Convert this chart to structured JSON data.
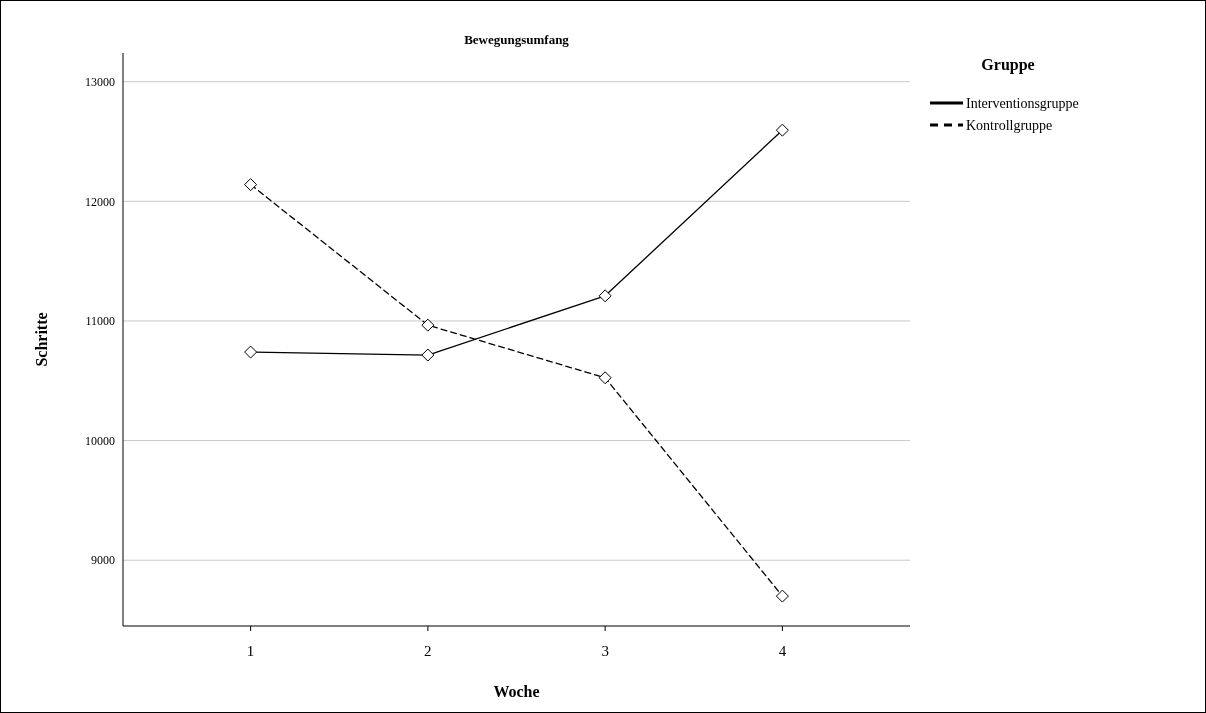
{
  "chart_data": {
    "type": "line",
    "title": "Bewegungsumfang",
    "xlabel": "Woche",
    "ylabel": "Schritte",
    "legend_title": "Gruppe",
    "x": [
      1,
      2,
      3,
      4
    ],
    "xlim": [
      0.28,
      4.72
    ],
    "xticks": [
      1,
      2,
      3,
      4
    ],
    "ylim": [
      8450,
      13240
    ],
    "yticks": [
      9000,
      10000,
      11000,
      12000,
      13000
    ],
    "grid": "y",
    "legend": "top right",
    "marker": "diamond",
    "series": [
      {
        "name": "Interventionsgruppe",
        "color": "#000000",
        "line_style": "solid",
        "values": [
          10740,
          10715,
          11210,
          12595
        ]
      },
      {
        "name": "Kontrollgruppe",
        "color": "#000000",
        "line_style": "dashed",
        "values": [
          12140,
          10965,
          10525,
          8700
        ]
      }
    ]
  }
}
